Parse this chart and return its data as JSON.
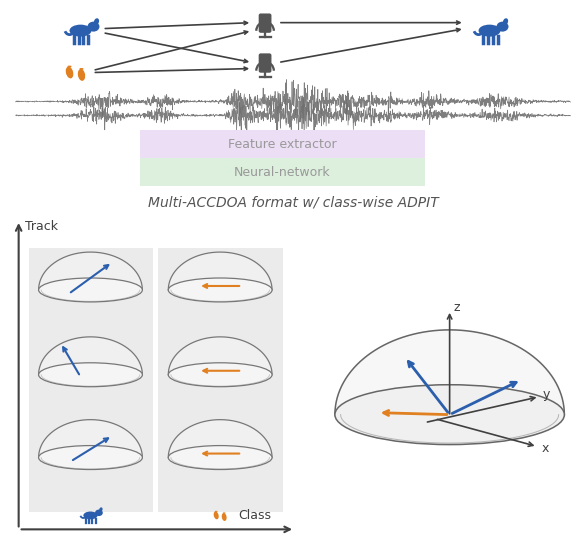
{
  "title_text": "Multi-ACCDOA format w/ class-wise ADPIT",
  "track_label": "Track",
  "class_label": "Class",
  "feature_box_text": "Feature extractor",
  "nn_box_text": "Neural-network",
  "blue_color": "#2b5fad",
  "orange_color": "#e08020",
  "dark_gray": "#404040",
  "mid_gray": "#606060",
  "light_gray_bg": "#ebebeb",
  "box_purple": "#ecdff5",
  "box_green": "#ddf0dd",
  "dome_edge_color": "#666666",
  "dome_fill": "#f5f5f5",
  "waveform_color": "#707070",
  "arrow_color": "#555555",
  "axis_lw": 1.5,
  "dome_lw": 1.0
}
